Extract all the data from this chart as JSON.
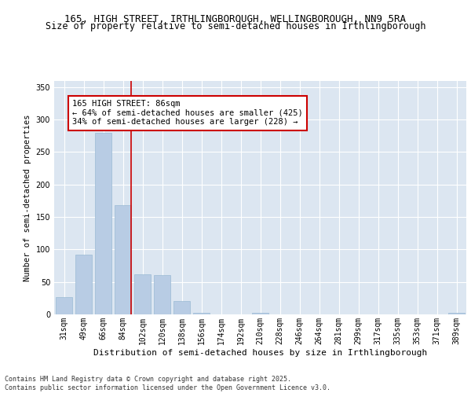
{
  "title1": "165, HIGH STREET, IRTHLINGBOROUGH, WELLINGBOROUGH, NN9 5RA",
  "title2": "Size of property relative to semi-detached houses in Irthlingborough",
  "xlabel": "Distribution of semi-detached houses by size in Irthlingborough",
  "ylabel": "Number of semi-detached properties",
  "categories": [
    "31sqm",
    "49sqm",
    "66sqm",
    "84sqm",
    "102sqm",
    "120sqm",
    "138sqm",
    "156sqm",
    "174sqm",
    "192sqm",
    "210sqm",
    "228sqm",
    "246sqm",
    "264sqm",
    "281sqm",
    "299sqm",
    "317sqm",
    "335sqm",
    "353sqm",
    "371sqm",
    "389sqm"
  ],
  "values": [
    27,
    92,
    280,
    168,
    62,
    60,
    20,
    3,
    0,
    0,
    3,
    0,
    0,
    0,
    0,
    0,
    0,
    0,
    0,
    0,
    2
  ],
  "bar_color": "#b8cce4",
  "bar_edge_color": "#9bbad4",
  "subject_line_color": "#cc0000",
  "subject_bin_index": 3,
  "annotation_text": "165 HIGH STREET: 86sqm\n← 64% of semi-detached houses are smaller (425)\n34% of semi-detached houses are larger (228) →",
  "annotation_box_color": "#ffffff",
  "annotation_box_edge": "#cc0000",
  "ylim": [
    0,
    360
  ],
  "yticks": [
    0,
    50,
    100,
    150,
    200,
    250,
    300,
    350
  ],
  "background_color": "#dce6f1",
  "footer_line1": "Contains HM Land Registry data © Crown copyright and database right 2025.",
  "footer_line2": "Contains public sector information licensed under the Open Government Licence v3.0.",
  "title1_fontsize": 9,
  "title2_fontsize": 8.5,
  "xlabel_fontsize": 8,
  "ylabel_fontsize": 7.5,
  "tick_fontsize": 7,
  "annot_fontsize": 7.5,
  "footer_fontsize": 6
}
